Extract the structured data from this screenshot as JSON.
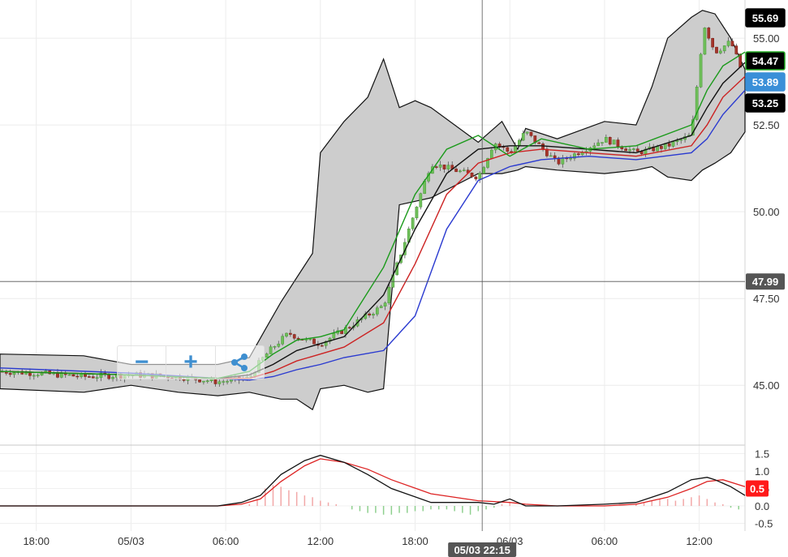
{
  "chart_data": [
    {
      "type": "candlestick",
      "title": "",
      "yticks": [
        "55.00",
        "52.50",
        "50.00",
        "47.50",
        "45.00"
      ],
      "ytick_values": [
        55.0,
        52.5,
        50.0,
        47.5,
        45.0
      ],
      "ylim": [
        43.3,
        56.1
      ],
      "xticks": [
        "18:00",
        "05/03",
        "06:00",
        "12:00",
        "18:00",
        "06/03",
        "06:00",
        "12:00"
      ],
      "xlim": [
        -2.3,
        44.9
      ],
      "xtick_hours": [
        0,
        6,
        12,
        18,
        24,
        30,
        36,
        42
      ],
      "gridlines": true,
      "crosshair": {
        "price_label": "47.99",
        "price": 47.99,
        "time_label": "05/03 22:15",
        "time_hours": 28.25
      },
      "price_tags": [
        {
          "label": "55.69",
          "value": 55.69,
          "color": "#000000"
        },
        {
          "label": "54.47",
          "value": 54.47,
          "color": "#000000",
          "border": "#22aa22"
        },
        {
          "label": "53.89",
          "value": 53.89,
          "color": "#3a8fd8"
        },
        {
          "label": "53.25",
          "value": 53.25,
          "color": "#000000"
        }
      ],
      "price_path": {
        "hours": [
          -2.3,
          0,
          3,
          6,
          9,
          11.5,
          13.5,
          14.2,
          15,
          16,
          17,
          18,
          19.5,
          22,
          25,
          28,
          29,
          30,
          31,
          33,
          36,
          38,
          40,
          41.5,
          42.3,
          43,
          44,
          44.9
        ],
        "close": [
          45.4,
          45.35,
          45.25,
          45.3,
          45.25,
          45.1,
          45.2,
          45.7,
          46.1,
          46.5,
          46.3,
          46.2,
          46.6,
          47.3,
          51.4,
          51.0,
          52.0,
          51.7,
          52.3,
          51.4,
          52.1,
          51.7,
          51.9,
          52.2,
          55.4,
          54.6,
          54.9,
          53.8
        ]
      },
      "bollinger": {
        "hours": [
          -2.3,
          3,
          6,
          9,
          11.5,
          13.5,
          14.5,
          15.5,
          16.5,
          17.5,
          18,
          19.5,
          21,
          22,
          23,
          24,
          25,
          28,
          29.5,
          30.5,
          31,
          33,
          36,
          38,
          39,
          40,
          41.5,
          42.2,
          43,
          44,
          44.9
        ],
        "upper": [
          45.9,
          45.85,
          45.6,
          45.6,
          45.6,
          45.8,
          46.6,
          47.4,
          48.1,
          48.8,
          51.7,
          52.6,
          53.3,
          54.4,
          53.0,
          53.2,
          53.0,
          52.0,
          52.6,
          51.8,
          52.4,
          52.1,
          52.6,
          52.5,
          53.6,
          55.0,
          55.6,
          55.8,
          55.7,
          55.0,
          54.1
        ],
        "lower": [
          44.9,
          44.8,
          45.0,
          44.8,
          44.7,
          44.8,
          44.7,
          44.6,
          44.6,
          44.3,
          44.9,
          45.0,
          44.8,
          44.9,
          50.2,
          50.3,
          50.4,
          51.1,
          51.1,
          51.2,
          51.3,
          51.2,
          51.1,
          51.2,
          51.3,
          51.0,
          50.9,
          51.2,
          51.4,
          51.7,
          52.3
        ]
      },
      "ma_fast": {
        "color": "#1a9a1a",
        "hours": [
          -2.3,
          6,
          11.5,
          13.5,
          15,
          16.5,
          18,
          19.5,
          22,
          24,
          26,
          28,
          30,
          32,
          35,
          38,
          41.5,
          42.5,
          43.5,
          44.9
        ],
        "values": [
          45.4,
          45.3,
          45.2,
          45.4,
          45.9,
          46.3,
          46.4,
          46.6,
          48.4,
          50.5,
          51.8,
          52.2,
          51.6,
          52.1,
          51.8,
          51.9,
          52.5,
          53.5,
          54.2,
          54.6
        ]
      },
      "ma_mid": {
        "color": "#111111",
        "hours": [
          -2.3,
          6,
          11.5,
          13.5,
          15,
          16.5,
          18,
          19.5,
          22,
          24,
          26,
          28,
          30,
          32,
          35,
          38,
          41.5,
          42.5,
          43.5,
          44.9
        ],
        "values": [
          45.4,
          45.3,
          45.2,
          45.3,
          45.6,
          46.0,
          46.2,
          46.4,
          47.6,
          49.5,
          51.1,
          51.8,
          51.9,
          51.9,
          51.8,
          51.7,
          52.2,
          53.0,
          53.7,
          54.3
        ]
      },
      "ma_slow": {
        "color": "#cc2222",
        "hours": [
          -2.3,
          6,
          11.5,
          13.5,
          15,
          16.5,
          18,
          19.5,
          22,
          24,
          26,
          28,
          30,
          32,
          35,
          38,
          41.5,
          42.5,
          43.5,
          44.9
        ],
        "values": [
          45.4,
          45.3,
          45.2,
          45.2,
          45.4,
          45.7,
          45.9,
          46.1,
          46.8,
          48.5,
          50.5,
          51.4,
          51.7,
          51.8,
          51.7,
          51.6,
          51.9,
          52.5,
          53.3,
          53.9
        ]
      },
      "ma_long": {
        "color": "#2a3ad0",
        "hours": [
          -2.3,
          6,
          11.5,
          13.5,
          15,
          16.5,
          18,
          19.5,
          22,
          24,
          26,
          28,
          30,
          32,
          35,
          38,
          41.5,
          42.5,
          43.5,
          44.9
        ],
        "values": [
          45.5,
          45.35,
          45.2,
          45.15,
          45.25,
          45.45,
          45.6,
          45.8,
          46.0,
          47.0,
          49.5,
          50.9,
          51.3,
          51.5,
          51.6,
          51.5,
          51.7,
          52.1,
          52.8,
          53.5
        ]
      }
    },
    {
      "type": "macd",
      "yticks": [
        "1.5",
        "1.0",
        "0.5",
        "0.0",
        "-0.5"
      ],
      "ytick_values": [
        1.5,
        1.0,
        0.5,
        0.0,
        -0.5
      ],
      "ylim": [
        -0.72,
        1.72
      ],
      "tag": {
        "label": "0.5",
        "value": 0.5,
        "color": "#ff1a1a"
      },
      "macd": {
        "color": "#111111",
        "hours": [
          -2.3,
          6,
          11.5,
          13,
          14.2,
          15.5,
          17,
          18,
          19.5,
          21,
          22.5,
          25,
          28,
          29,
          30,
          31,
          33,
          36,
          38,
          40,
          41.5,
          42.5,
          43,
          44,
          44.9
        ],
        "values": [
          0.0,
          0.0,
          0.0,
          0.1,
          0.3,
          0.9,
          1.3,
          1.45,
          1.25,
          0.9,
          0.5,
          0.1,
          0.1,
          0.05,
          0.2,
          0.0,
          0.0,
          0.05,
          0.1,
          0.4,
          0.75,
          0.82,
          0.75,
          0.55,
          0.3
        ]
      },
      "signal": {
        "color": "#dd2222",
        "hours": [
          -2.3,
          6,
          11.5,
          13,
          14.2,
          15.5,
          17,
          18,
          19.5,
          21,
          22.5,
          25,
          28,
          30,
          31,
          33,
          36,
          38,
          40,
          41.5,
          42.5,
          43.5,
          44.9
        ],
        "values": [
          0.0,
          0.0,
          0.0,
          0.05,
          0.2,
          0.7,
          1.15,
          1.35,
          1.25,
          1.05,
          0.75,
          0.35,
          0.15,
          0.1,
          0.05,
          0.0,
          0.0,
          0.05,
          0.25,
          0.5,
          0.7,
          0.75,
          0.55
        ]
      },
      "histogram": {
        "hours": [
          13.5,
          14,
          14.5,
          15,
          15.5,
          16,
          16.5,
          17,
          17.5,
          18,
          18.5,
          19,
          19.5,
          20,
          20.5,
          21,
          21.5,
          22,
          22.5,
          23,
          23.5,
          24,
          24.5,
          25,
          25.5,
          26,
          26.5,
          27,
          27.5,
          28,
          28.5,
          29,
          29.5,
          30,
          38,
          38.5,
          39,
          39.5,
          40,
          40.5,
          41,
          41.5,
          42,
          42.5,
          43,
          43.5,
          44,
          44.5
        ],
        "values": [
          0.05,
          0.2,
          0.5,
          0.6,
          0.55,
          0.45,
          0.4,
          0.3,
          0.25,
          0.15,
          0.1,
          0.05,
          0.0,
          -0.1,
          -0.15,
          -0.2,
          -0.2,
          -0.25,
          -0.25,
          -0.2,
          -0.2,
          -0.15,
          -0.15,
          -0.1,
          -0.1,
          -0.1,
          -0.15,
          -0.2,
          -0.25,
          -0.15,
          -0.1,
          -0.05,
          0.05,
          0.1,
          0.05,
          0.1,
          0.15,
          0.2,
          0.2,
          0.15,
          0.2,
          0.25,
          0.3,
          0.2,
          0.1,
          0.05,
          -0.05,
          -0.1
        ]
      }
    }
  ]
}
